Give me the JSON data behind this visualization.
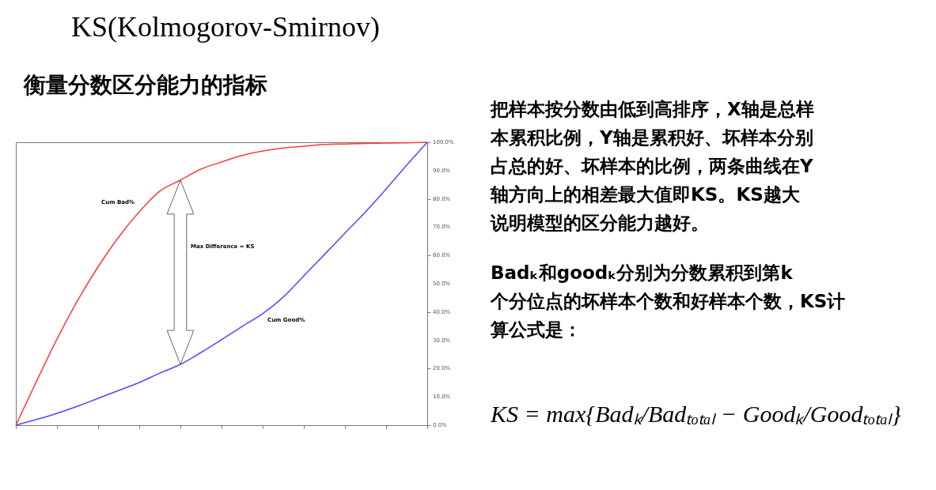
{
  "chart_data": {
    "type": "line",
    "title": "KS(Kolmogorov-Smirnov)",
    "subtitle": "衡量分数区分能力的指标",
    "annotations": [
      "把样本按分数由低到高排序，X轴是总样本累积比例，Y轴是累积好、坏样本分别占总的好、坏样本的比例，两条曲线在Y轴方向上的相差最大值即KS。KS越大说明模型的区分能力越好。",
      "Badₖ和goodₖ分别为分数累积到第k个分位点的坏样本个数和好样本个数，KS计算公式是：",
      "KS = max{Badₖ/Badₜₒₜₐₗ − Goodₖ/Goodₜₒₜₐₗ}",
      "Max Difference = KS"
    ],
    "categories": [
      null,
      null,
      null,
      null,
      null,
      null,
      null,
      null,
      null,
      null,
      null,
      null,
      null,
      null,
      null,
      null,
      null,
      null,
      null,
      null,
      null
    ],
    "series": [
      {
        "name": "Cum Bad%",
        "color": "#ff3b3b",
        "values": [
          0,
          15.4,
          30.4,
          44,
          56,
          66.5,
          75.4,
          82.7,
          86.6,
          90.5,
          93,
          95.3,
          96.9,
          98,
          98.6,
          99.2,
          99.4,
          99.6,
          99.7,
          99.8,
          100
        ]
      },
      {
        "name": "Cum Good%",
        "color": "#4a4aff",
        "values": [
          0,
          2,
          4.2,
          6.7,
          9.5,
          12.3,
          15.1,
          18.4,
          21.5,
          25.7,
          30.2,
          34.9,
          39.4,
          45.3,
          52.8,
          60.3,
          67.9,
          75.4,
          83.5,
          91.9,
          100
        ]
      }
    ],
    "ylim": [
      0,
      100
    ],
    "yticks": [
      {
        "value": 0,
        "label": "0.0%"
      },
      {
        "value": 10,
        "label": "10.0%"
      },
      {
        "value": 20,
        "label": "20.0%"
      },
      {
        "value": 30,
        "label": "30.0%"
      },
      {
        "value": 40,
        "label": "40.0%"
      },
      {
        "value": 50,
        "label": "50.0%"
      },
      {
        "value": 60,
        "label": "60.0%"
      },
      {
        "value": 70,
        "label": "70.0%"
      },
      {
        "value": 80,
        "label": "80.0%"
      },
      {
        "value": 90,
        "label": "90.0%"
      },
      {
        "value": 100,
        "label": "100.0%"
      }
    ],
    "tick_labels": "y",
    "grid": false
  }
}
